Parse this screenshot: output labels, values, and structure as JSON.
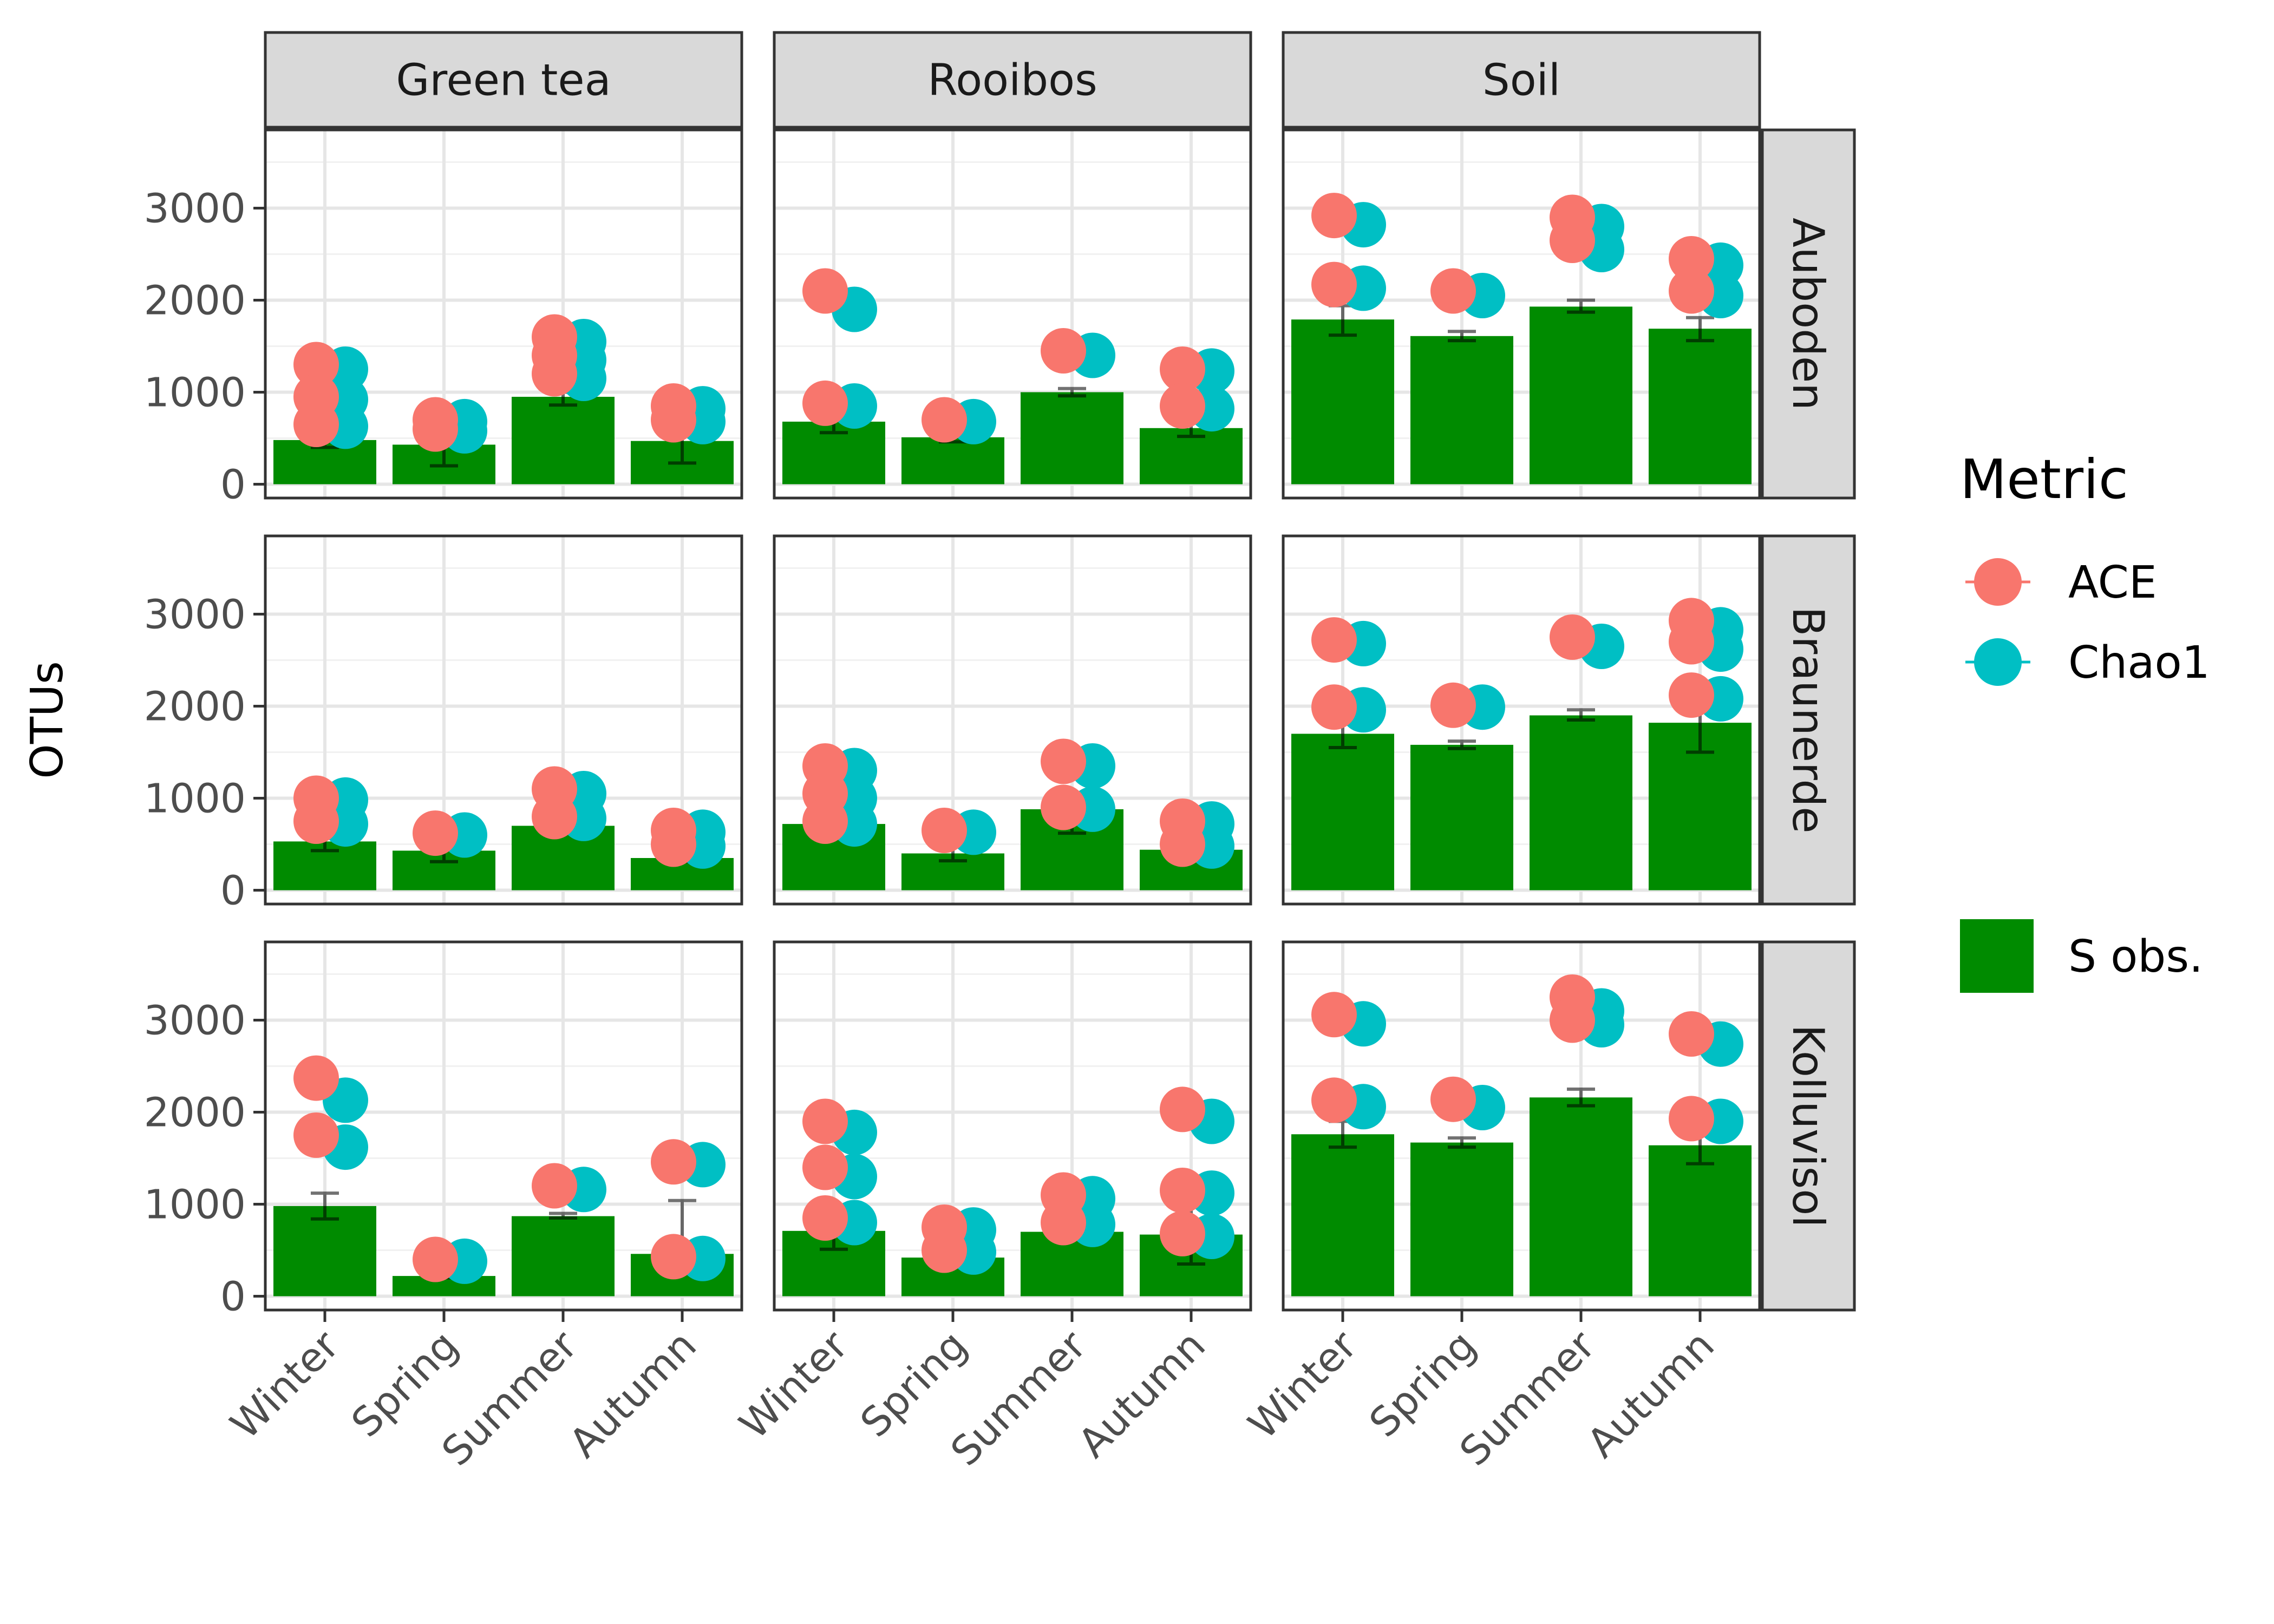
{
  "chart_data": {
    "type": "bar",
    "title": "",
    "ylabel": "OTUs",
    "xlabel": "",
    "ylim": [
      -150,
      3850
    ],
    "yticks": [
      0,
      1000,
      2000,
      3000
    ],
    "grid": true,
    "categories": [
      "Winter",
      "Spring",
      "Summer",
      "Autumn"
    ],
    "col_facets": [
      "Green tea",
      "Rooibos",
      "Soil"
    ],
    "row_facets": [
      "Auboden",
      "Braunerde",
      "Kolluvisol"
    ],
    "legend": {
      "position": "right",
      "title": "Metric",
      "point_items": [
        {
          "label": "ACE",
          "color": "#F8766D"
        },
        {
          "label": "Chao1",
          "color": "#00BFC4"
        }
      ],
      "bar_item": {
        "label": "S obs.",
        "color": "#008B00"
      }
    },
    "colors": {
      "ace": "#F8766D",
      "chao1": "#00BFC4",
      "bar": "#008B00",
      "strip": "#D9D9D9"
    },
    "panels": [
      {
        "row": "Auboden",
        "col": "Green tea",
        "bars": [
          480,
          430,
          950,
          470
        ],
        "err": [
          [
            400,
            560
          ],
          [
            200,
            500
          ],
          [
            860,
            1000
          ],
          [
            230,
            560
          ]
        ],
        "ace": [
          [
            1300,
            950,
            650
          ],
          [
            700,
            600
          ],
          [
            1600,
            1400,
            1200
          ],
          [
            850,
            700
          ]
        ],
        "chao1": [
          [
            1250,
            920,
            630
          ],
          [
            680,
            580
          ],
          [
            1550,
            1350,
            1150
          ],
          [
            820,
            680
          ]
        ]
      },
      {
        "row": "Auboden",
        "col": "Rooibos",
        "bars": [
          680,
          510,
          1000,
          610
        ],
        "err": [
          [
            560,
            1020
          ],
          [
            460,
            560
          ],
          [
            960,
            1040
          ],
          [
            520,
            780
          ]
        ],
        "ace": [
          [
            2100,
            880
          ],
          [
            700
          ],
          [
            1450
          ],
          [
            1250,
            850
          ]
        ],
        "chao1": [
          [
            1900,
            850
          ],
          [
            680
          ],
          [
            1400
          ],
          [
            1230,
            820
          ]
        ]
      },
      {
        "row": "Auboden",
        "col": "Soil",
        "bars": [
          1790,
          1610,
          1930,
          1690
        ],
        "err": [
          [
            1620,
            1940
          ],
          [
            1560,
            1660
          ],
          [
            1870,
            2000
          ],
          [
            1560,
            1810
          ]
        ],
        "ace": [
          [
            2920,
            2170
          ],
          [
            2100
          ],
          [
            2900,
            2650
          ],
          [
            2450,
            2100
          ]
        ],
        "chao1": [
          [
            2820,
            2130
          ],
          [
            2050
          ],
          [
            2800,
            2550
          ],
          [
            2380,
            2050
          ]
        ]
      },
      {
        "row": "Braunerde",
        "col": "Green tea",
        "bars": [
          530,
          430,
          700,
          350
        ],
        "err": [
          [
            430,
            620
          ],
          [
            310,
            480
          ],
          [
            660,
            780
          ],
          [
            310,
            390
          ]
        ],
        "ace": [
          [
            1000,
            750
          ],
          [
            620
          ],
          [
            1100,
            800
          ],
          [
            650,
            500
          ]
        ],
        "chao1": [
          [
            980,
            720
          ],
          [
            600
          ],
          [
            1050,
            780
          ],
          [
            630,
            480
          ]
        ]
      },
      {
        "row": "Braunerde",
        "col": "Rooibos",
        "bars": [
          720,
          400,
          880,
          440
        ],
        "err": [
          [
            580,
            780
          ],
          [
            320,
            500
          ],
          [
            620,
            950
          ],
          [
            420,
            460
          ]
        ],
        "ace": [
          [
            1350,
            1050,
            750
          ],
          [
            650
          ],
          [
            1400,
            900
          ],
          [
            750,
            500
          ]
        ],
        "chao1": [
          [
            1300,
            1000,
            720
          ],
          [
            630
          ],
          [
            1350,
            880
          ],
          [
            720,
            480
          ]
        ]
      },
      {
        "row": "Braunerde",
        "col": "Soil",
        "bars": [
          1700,
          1580,
          1900,
          1820
        ],
        "err": [
          [
            1550,
            1870
          ],
          [
            1540,
            1620
          ],
          [
            1850,
            1960
          ],
          [
            1500,
            2000
          ]
        ],
        "ace": [
          [
            2720,
            1990
          ],
          [
            2010
          ],
          [
            2750
          ],
          [
            2930,
            2700,
            2120
          ]
        ],
        "chao1": [
          [
            2680,
            1960
          ],
          [
            1990
          ],
          [
            2650
          ],
          [
            2830,
            2620,
            2080
          ]
        ]
      },
      {
        "row": "Kolluvisol",
        "col": "Green tea",
        "bars": [
          980,
          220,
          870,
          460
        ],
        "err": [
          [
            840,
            1120
          ],
          [
            200,
            240
          ],
          [
            850,
            900
          ],
          [
            280,
            1040
          ]
        ],
        "ace": [
          [
            2370,
            1750
          ],
          [
            400
          ],
          [
            1200
          ],
          [
            1460,
            430
          ]
        ],
        "chao1": [
          [
            2130,
            1620
          ],
          [
            380
          ],
          [
            1160
          ],
          [
            1430,
            410
          ]
        ]
      },
      {
        "row": "Kolluvisol",
        "col": "Rooibos",
        "bars": [
          710,
          420,
          700,
          670
        ],
        "err": [
          [
            510,
            960
          ],
          [
            330,
            480
          ],
          [
            670,
            800
          ],
          [
            350,
            1170
          ]
        ],
        "ace": [
          [
            1900,
            1400,
            850
          ],
          [
            750,
            500
          ],
          [
            1100,
            800
          ],
          [
            2030,
            1150,
            680
          ]
        ],
        "chao1": [
          [
            1780,
            1300,
            800
          ],
          [
            720,
            480
          ],
          [
            1060,
            780
          ],
          [
            1900,
            1120,
            650
          ]
        ]
      },
      {
        "row": "Kolluvisol",
        "col": "Soil",
        "bars": [
          1760,
          1670,
          2160,
          1640
        ],
        "err": [
          [
            1620,
            1900
          ],
          [
            1620,
            1720
          ],
          [
            2070,
            2250
          ],
          [
            1440,
            2000
          ]
        ],
        "ace": [
          [
            3060,
            2130
          ],
          [
            2140
          ],
          [
            3250,
            3000
          ],
          [
            2850,
            1930
          ]
        ],
        "chao1": [
          [
            2960,
            2060
          ],
          [
            2050
          ],
          [
            3100,
            2950
          ],
          [
            2740,
            1900
          ]
        ]
      }
    ]
  }
}
